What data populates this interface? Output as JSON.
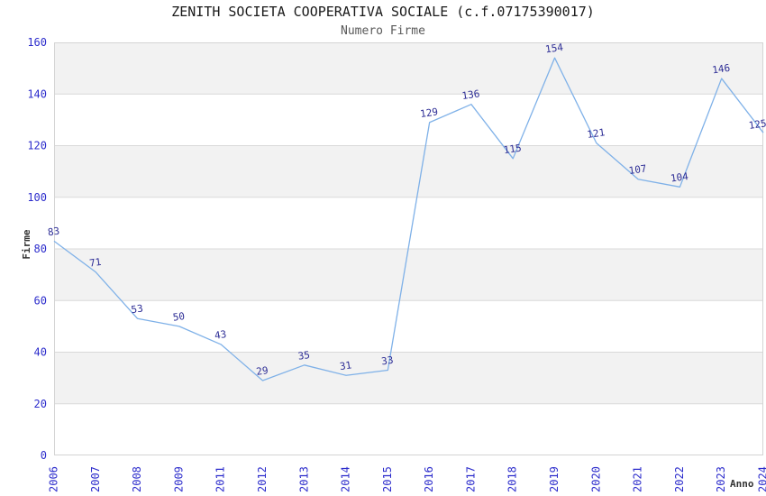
{
  "chart_data": {
    "type": "line",
    "title": "ZENITH SOCIETA COOPERATIVA SOCIALE (c.f.07175390017)",
    "subtitle": "Numero Firme",
    "xlabel": "Anno",
    "ylabel": "Firme",
    "categories": [
      "2006",
      "2007",
      "2008",
      "2009",
      "2011",
      "2012",
      "2013",
      "2014",
      "2015",
      "2016",
      "2017",
      "2018",
      "2019",
      "2020",
      "2021",
      "2022",
      "2023",
      "2024"
    ],
    "values": [
      83,
      71,
      53,
      50,
      43,
      29,
      35,
      31,
      33,
      129,
      136,
      115,
      154,
      121,
      107,
      104,
      146,
      125
    ],
    "ylim": [
      0,
      160
    ],
    "ytick_step": 20,
    "yticks": [
      0,
      20,
      40,
      60,
      80,
      100,
      120,
      140,
      160
    ],
    "legend": "none",
    "grid": "alternating-horizontal-bands",
    "colors": {
      "line": "#7fb1e8",
      "value_labels": "#2e2e96",
      "tick_labels": "#2d2dcc",
      "band": "#f2f2f2",
      "grid": "#d9d9d9",
      "plot_border": "#d4d4d4",
      "title": "#1a1a1a",
      "subtitle": "#595959",
      "axis_labels": "#333333",
      "background": "#ffffff"
    }
  }
}
